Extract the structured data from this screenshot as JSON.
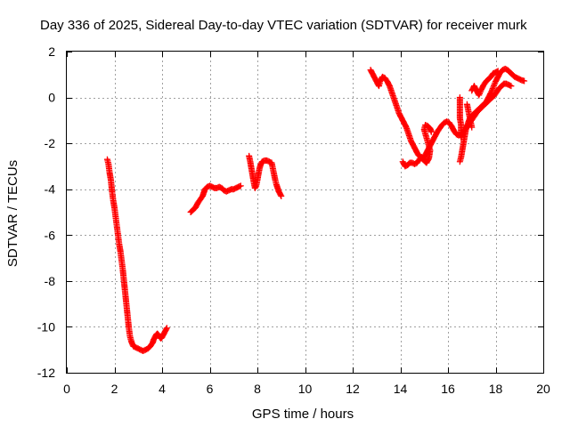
{
  "chart_data": {
    "type": "scatter",
    "title": "Day 336 of 2025, Sidereal Day-to-day VTEC variation (SDTVAR) for receiver murk",
    "xlabel": "GPS time / hours",
    "ylabel": "SDTVAR / TECUs",
    "xlim": [
      0,
      20
    ],
    "ylim": [
      -12,
      2
    ],
    "xticks": [
      0,
      2,
      4,
      6,
      8,
      10,
      12,
      14,
      16,
      18,
      20
    ],
    "yticks": [
      -12,
      -10,
      -8,
      -6,
      -4,
      -2,
      0,
      2
    ],
    "grid": true,
    "marker": "+",
    "color": "#ff0000",
    "series": [
      {
        "segments": [
          [
            [
              1.7,
              -2.7
            ],
            [
              1.75,
              -2.9
            ],
            [
              1.8,
              -3.3
            ],
            [
              1.85,
              -3.6
            ],
            [
              1.9,
              -4.1
            ],
            [
              1.95,
              -4.5
            ],
            [
              2.0,
              -4.8
            ],
            [
              2.05,
              -5.2
            ],
            [
              2.1,
              -5.6
            ],
            [
              2.15,
              -6.0
            ],
            [
              2.2,
              -6.4
            ],
            [
              2.25,
              -6.7
            ],
            [
              2.3,
              -7.1
            ],
            [
              2.35,
              -7.5
            ],
            [
              2.4,
              -8.0
            ],
            [
              2.45,
              -8.5
            ],
            [
              2.5,
              -9.0
            ],
            [
              2.55,
              -9.5
            ],
            [
              2.6,
              -10.0
            ],
            [
              2.65,
              -10.4
            ],
            [
              2.7,
              -10.6
            ],
            [
              2.75,
              -10.75
            ],
            [
              2.8,
              -10.85
            ],
            [
              2.9,
              -10.9
            ],
            [
              3.0,
              -10.95
            ],
            [
              3.1,
              -11.0
            ],
            [
              3.2,
              -11.05
            ],
            [
              3.3,
              -11.0
            ],
            [
              3.4,
              -10.95
            ],
            [
              3.5,
              -10.85
            ],
            [
              3.6,
              -10.7
            ],
            [
              3.65,
              -10.55
            ],
            [
              3.7,
              -10.45
            ],
            [
              3.75,
              -10.35
            ],
            [
              3.8,
              -10.3
            ],
            [
              3.85,
              -10.35
            ],
            [
              3.9,
              -10.45
            ],
            [
              3.95,
              -10.5
            ],
            [
              4.0,
              -10.45
            ],
            [
              4.05,
              -10.35
            ],
            [
              4.1,
              -10.25
            ],
            [
              4.15,
              -10.15
            ],
            [
              4.2,
              -10.05
            ]
          ],
          [
            [
              5.2,
              -5.0
            ],
            [
              5.3,
              -4.9
            ],
            [
              5.4,
              -4.8
            ],
            [
              5.5,
              -4.6
            ],
            [
              5.6,
              -4.45
            ],
            [
              5.7,
              -4.3
            ],
            [
              5.75,
              -4.15
            ],
            [
              5.8,
              -4.0
            ],
            [
              5.9,
              -3.9
            ],
            [
              6.0,
              -3.85
            ],
            [
              6.1,
              -3.9
            ],
            [
              6.2,
              -3.95
            ],
            [
              6.3,
              -3.95
            ],
            [
              6.4,
              -3.9
            ],
            [
              6.5,
              -3.95
            ],
            [
              6.6,
              -4.05
            ],
            [
              6.7,
              -4.1
            ],
            [
              6.8,
              -4.05
            ],
            [
              6.9,
              -4.0
            ],
            [
              7.0,
              -4.0
            ],
            [
              7.1,
              -3.95
            ],
            [
              7.2,
              -3.9
            ],
            [
              7.3,
              -3.85
            ]
          ],
          [
            [
              7.65,
              -2.55
            ],
            [
              7.7,
              -2.8
            ],
            [
              7.75,
              -3.1
            ],
            [
              7.8,
              -3.4
            ],
            [
              7.85,
              -3.7
            ],
            [
              7.9,
              -3.95
            ],
            [
              7.95,
              -3.85
            ],
            [
              8.0,
              -3.6
            ],
            [
              8.05,
              -3.3
            ],
            [
              8.1,
              -3.05
            ],
            [
              8.15,
              -2.9
            ],
            [
              8.2,
              -2.8
            ],
            [
              8.3,
              -2.75
            ],
            [
              8.4,
              -2.75
            ],
            [
              8.5,
              -2.8
            ],
            [
              8.6,
              -2.85
            ],
            [
              8.65,
              -3.1
            ],
            [
              8.7,
              -3.35
            ],
            [
              8.75,
              -3.6
            ],
            [
              8.8,
              -3.8
            ],
            [
              8.85,
              -3.95
            ],
            [
              8.9,
              -4.1
            ],
            [
              8.95,
              -4.2
            ],
            [
              9.0,
              -4.3
            ]
          ],
          [
            [
              12.75,
              1.2
            ],
            [
              12.85,
              1.0
            ],
            [
              12.95,
              0.8
            ],
            [
              13.05,
              0.6
            ],
            [
              13.1,
              0.5
            ],
            [
              13.15,
              0.7
            ],
            [
              13.25,
              0.9
            ],
            [
              13.35,
              0.85
            ],
            [
              13.45,
              0.7
            ],
            [
              13.55,
              0.5
            ],
            [
              13.65,
              0.2
            ],
            [
              13.75,
              -0.1
            ],
            [
              13.85,
              -0.4
            ],
            [
              13.95,
              -0.7
            ],
            [
              14.05,
              -0.9
            ],
            [
              14.15,
              -1.1
            ],
            [
              14.25,
              -1.3
            ],
            [
              14.35,
              -1.6
            ],
            [
              14.45,
              -1.9
            ],
            [
              14.55,
              -2.1
            ],
            [
              14.65,
              -2.3
            ],
            [
              14.75,
              -2.5
            ],
            [
              14.85,
              -2.6
            ],
            [
              14.95,
              -2.7
            ],
            [
              15.05,
              -2.5
            ],
            [
              15.15,
              -2.3
            ],
            [
              15.25,
              -2.1
            ],
            [
              15.35,
              -1.9
            ],
            [
              15.45,
              -1.7
            ],
            [
              15.55,
              -1.5
            ],
            [
              15.65,
              -1.35
            ],
            [
              15.75,
              -1.2
            ],
            [
              15.85,
              -1.1
            ],
            [
              15.95,
              -1.05
            ],
            [
              16.05,
              -1.1
            ],
            [
              16.15,
              -1.25
            ],
            [
              16.25,
              -1.45
            ],
            [
              16.35,
              -1.6
            ],
            [
              16.45,
              -1.65
            ],
            [
              16.55,
              -1.6
            ],
            [
              16.65,
              -1.5
            ],
            [
              16.75,
              -1.35
            ],
            [
              16.85,
              -1.2
            ],
            [
              16.95,
              -1.05
            ],
            [
              17.05,
              -0.9
            ],
            [
              17.15,
              -0.75
            ],
            [
              17.25,
              -0.6
            ],
            [
              17.35,
              -0.5
            ],
            [
              17.45,
              -0.4
            ],
            [
              17.55,
              -0.3
            ],
            [
              17.65,
              -0.2
            ],
            [
              17.75,
              -0.1
            ],
            [
              17.85,
              0.0
            ],
            [
              17.95,
              0.1
            ],
            [
              18.05,
              0.25
            ],
            [
              18.15,
              0.4
            ],
            [
              18.25,
              0.5
            ],
            [
              18.35,
              0.6
            ],
            [
              18.45,
              0.6
            ],
            [
              18.55,
              0.55
            ],
            [
              18.65,
              0.5
            ]
          ],
          [
            [
              14.1,
              -2.8
            ],
            [
              14.2,
              -3.0
            ],
            [
              14.3,
              -2.95
            ],
            [
              14.4,
              -2.85
            ],
            [
              14.5,
              -2.85
            ],
            [
              14.6,
              -2.9
            ],
            [
              14.7,
              -2.85
            ],
            [
              14.8,
              -2.7
            ],
            [
              14.9,
              -2.6
            ],
            [
              15.0,
              -2.75
            ],
            [
              15.1,
              -2.85
            ],
            [
              15.2,
              -2.65
            ],
            [
              15.25,
              -2.3
            ],
            [
              15.0,
              -1.4
            ],
            [
              15.05,
              -1.2
            ],
            [
              15.15,
              -1.25
            ],
            [
              15.25,
              -1.35
            ],
            [
              15.3,
              -1.5
            ]
          ],
          [
            [
              16.5,
              -2.8
            ],
            [
              16.55,
              -2.6
            ],
            [
              16.6,
              -2.3
            ],
            [
              16.65,
              -2.0
            ],
            [
              16.7,
              -1.7
            ],
            [
              16.75,
              -1.4
            ],
            [
              16.8,
              -1.25
            ],
            [
              16.85,
              -1.1
            ],
            [
              16.9,
              -0.95
            ],
            [
              17.0,
              -0.8
            ],
            [
              17.1,
              -0.7
            ],
            [
              17.2,
              -0.6
            ],
            [
              17.3,
              -0.5
            ],
            [
              17.4,
              -0.4
            ],
            [
              17.5,
              -0.3
            ],
            [
              17.6,
              -0.2
            ],
            [
              17.7,
              0.0
            ],
            [
              17.8,
              0.2
            ],
            [
              17.9,
              0.45
            ],
            [
              18.0,
              0.7
            ],
            [
              18.1,
              0.9
            ],
            [
              18.2,
              1.1
            ],
            [
              18.3,
              1.2
            ],
            [
              18.4,
              1.25
            ],
            [
              18.5,
              1.2
            ],
            [
              18.6,
              1.1
            ],
            [
              18.7,
              1.0
            ],
            [
              18.8,
              0.9
            ],
            [
              18.9,
              0.85
            ],
            [
              19.0,
              0.8
            ],
            [
              19.1,
              0.75
            ],
            [
              19.2,
              0.72
            ]
          ],
          [
            [
              16.5,
              0.0
            ],
            [
              16.5,
              -0.3
            ],
            [
              16.5,
              -0.6
            ],
            [
              16.5,
              -0.9
            ],
            [
              16.55,
              -1.2
            ],
            [
              16.55,
              -1.5
            ],
            [
              16.55,
              -1.75
            ]
          ],
          [
            [
              16.8,
              -0.3
            ],
            [
              16.85,
              -0.55
            ],
            [
              16.9,
              -0.8
            ],
            [
              16.95,
              -1.05
            ],
            [
              17.0,
              -1.3
            ]
          ],
          [
            [
              17.0,
              0.3
            ],
            [
              17.1,
              0.5
            ],
            [
              17.2,
              0.3
            ],
            [
              17.3,
              0.1
            ],
            [
              17.4,
              0.35
            ],
            [
              17.5,
              0.55
            ],
            [
              17.6,
              0.7
            ],
            [
              17.7,
              0.8
            ],
            [
              17.8,
              0.9
            ],
            [
              17.9,
              1.05
            ],
            [
              18.0,
              1.1
            ],
            [
              18.1,
              1.15
            ]
          ]
        ]
      }
    ]
  }
}
